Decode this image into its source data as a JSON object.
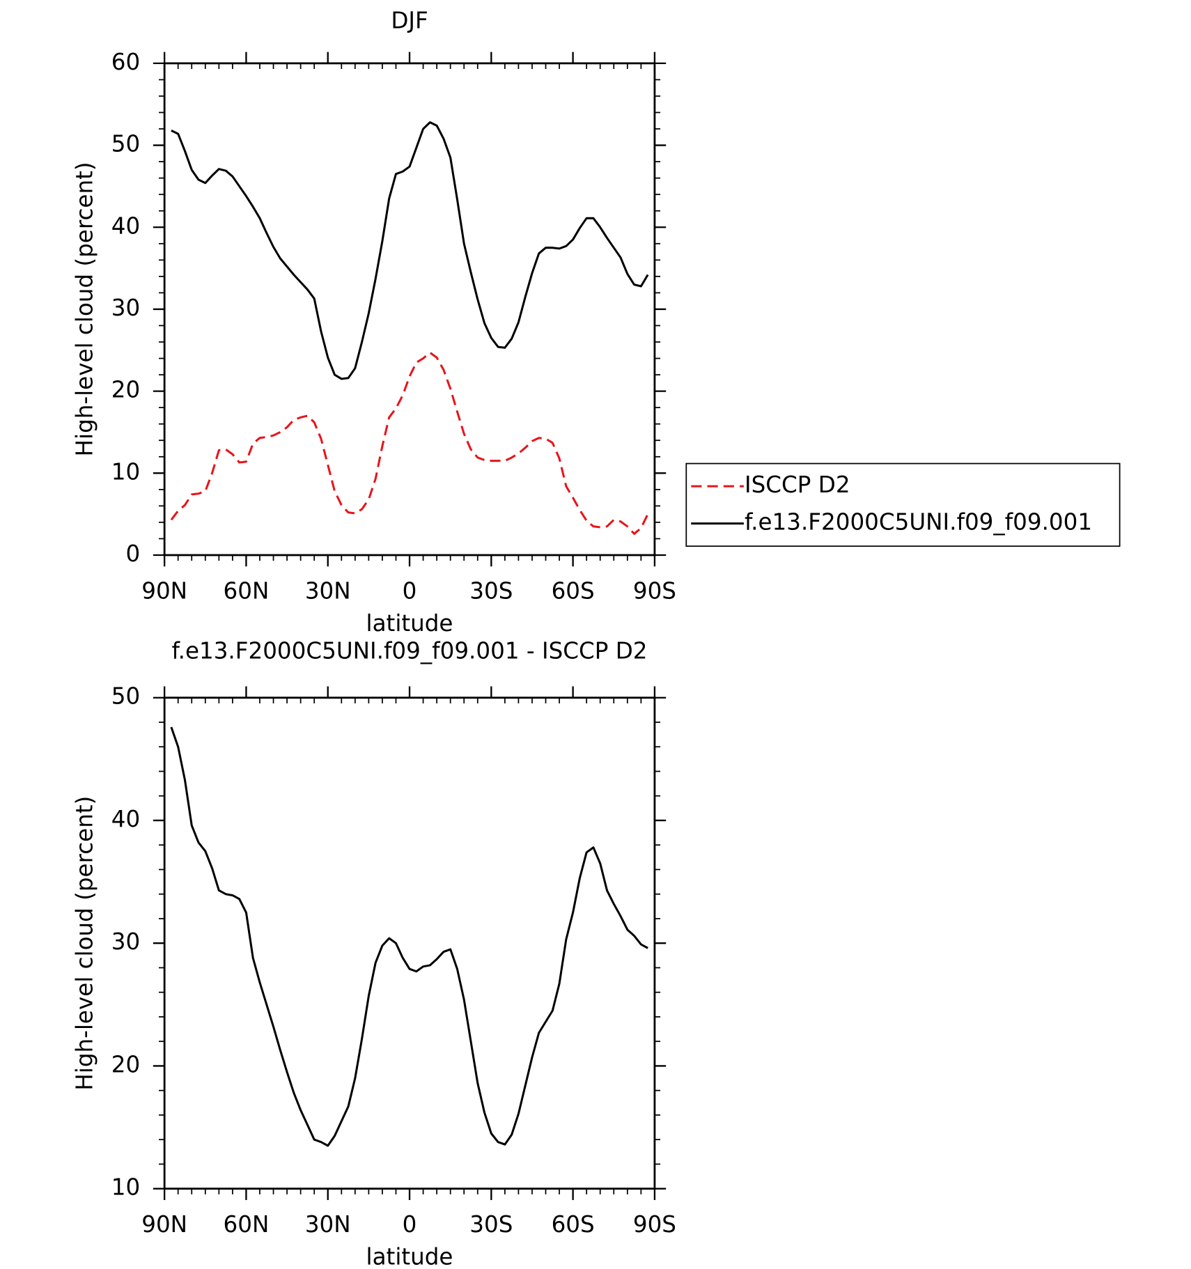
{
  "chart_data": [
    {
      "type": "line",
      "title": "DJF",
      "xlabel": "latitude",
      "ylabel": "High-level cloud (percent)",
      "x": [
        87.5,
        85,
        82.5,
        80,
        77.5,
        75,
        72.5,
        70,
        67.5,
        65,
        62.5,
        60,
        57.5,
        55,
        52.5,
        50,
        47.5,
        45,
        42.5,
        40,
        37.5,
        35,
        32.5,
        30,
        27.5,
        25,
        22.5,
        20,
        17.5,
        15,
        12.5,
        10,
        7.5,
        5,
        2.5,
        0,
        -2.5,
        -5,
        -7.5,
        -10,
        -12.5,
        -15,
        -17.5,
        -20,
        -22.5,
        -25,
        -27.5,
        -30,
        -32.5,
        -35,
        -37.5,
        -40,
        -42.5,
        -45,
        -47.5,
        -50,
        -52.5,
        -55,
        -57.5,
        -60,
        -62.5,
        -65,
        -67.5,
        -70,
        -72.5,
        -75,
        -77.5,
        -80,
        -82.5,
        -85,
        -87.5
      ],
      "xlim": [
        90,
        -90
      ],
      "xticks": [
        {
          "value": 90,
          "label": "90N"
        },
        {
          "value": 60,
          "label": "60N"
        },
        {
          "value": 30,
          "label": "30N"
        },
        0,
        {
          "value": -30,
          "label": "30S"
        },
        {
          "value": -60,
          "label": "60S"
        },
        {
          "value": -90,
          "label": "90S"
        }
      ],
      "ylim": [
        0,
        60
      ],
      "yticks": [
        0,
        10,
        20,
        30,
        40,
        50,
        60
      ],
      "legend": "right",
      "series": [
        {
          "name": "ISCCP D2",
          "color": "#e8141a",
          "dash": "dashed",
          "values": [
            4.3,
            5.4,
            6.1,
            7.4,
            7.5,
            7.8,
            10,
            12.8,
            12.9,
            12.3,
            11.3,
            11.4,
            13.6,
            14.3,
            14.4,
            14.6,
            15,
            15.6,
            16.5,
            16.8,
            17,
            16.2,
            14.2,
            11,
            7.8,
            6.1,
            5.2,
            5.1,
            5.6,
            6.8,
            9.3,
            13.3,
            16.8,
            17.9,
            19.5,
            21.8,
            23.5,
            24,
            24.7,
            24.1,
            22.6,
            20.3,
            17.5,
            14.8,
            12.9,
            11.9,
            11.6,
            11.5,
            11.5,
            11.5,
            11.9,
            12.4,
            13.1,
            13.9,
            14.3,
            14.2,
            13.7,
            11.8,
            8.4,
            7,
            5.5,
            4.2,
            3.5,
            3.4,
            3.5,
            4.3,
            4.1,
            3.5,
            2.6,
            3.3,
            5.0
          ]
        },
        {
          "name": "f.e13.F2000C5UNI.f09_f09.001",
          "color": "#000000",
          "dash": "solid",
          "values": [
            51.8,
            51.4,
            49.3,
            47,
            45.8,
            45.4,
            46.3,
            47.1,
            46.9,
            46.2,
            45,
            43.8,
            42.5,
            41.1,
            39.3,
            37.6,
            36.2,
            35.2,
            34.2,
            33.3,
            32.4,
            31.3,
            27.3,
            24.1,
            22,
            21.5,
            21.6,
            22.8,
            26,
            29.5,
            33.7,
            38.3,
            43.5,
            46.5,
            46.8,
            47.4,
            49.7,
            52,
            52.8,
            52.4,
            50.8,
            48.5,
            43.4,
            38,
            34.5,
            31.2,
            28.3,
            26.5,
            25.4,
            25.3,
            26.4,
            28.4,
            31.5,
            34.4,
            36.8,
            37.5,
            37.5,
            37.4,
            37.7,
            38.5,
            39.9,
            41.1,
            41.1,
            40,
            38.7,
            37.5,
            36.3,
            34.3,
            33,
            32.8,
            34.2
          ]
        }
      ]
    },
    {
      "type": "line",
      "title": "f.e13.F2000C5UNI.f09_f09.001 - ISCCP D2",
      "xlabel": "latitude",
      "ylabel": "High-level cloud (percent)",
      "x": [
        87.5,
        85,
        82.5,
        80,
        77.5,
        75,
        72.5,
        70,
        67.5,
        65,
        62.5,
        60,
        57.5,
        55,
        52.5,
        50,
        47.5,
        45,
        42.5,
        40,
        37.5,
        35,
        32.5,
        30,
        27.5,
        25,
        22.5,
        20,
        17.5,
        15,
        12.5,
        10,
        7.5,
        5,
        2.5,
        0,
        -2.5,
        -5,
        -7.5,
        -10,
        -12.5,
        -15,
        -17.5,
        -20,
        -22.5,
        -25,
        -27.5,
        -30,
        -32.5,
        -35,
        -37.5,
        -40,
        -42.5,
        -45,
        -47.5,
        -50,
        -52.5,
        -55,
        -57.5,
        -60,
        -62.5,
        -65,
        -67.5,
        -70,
        -72.5,
        -75,
        -77.5,
        -80,
        -82.5,
        -85,
        -87.5
      ],
      "xlim": [
        90,
        -90
      ],
      "xticks": [
        {
          "value": 90,
          "label": "90N"
        },
        {
          "value": 60,
          "label": "60N"
        },
        {
          "value": 30,
          "label": "30N"
        },
        0,
        {
          "value": -30,
          "label": "30S"
        },
        {
          "value": -60,
          "label": "60S"
        },
        {
          "value": -90,
          "label": "90S"
        }
      ],
      "ylim": [
        10,
        50
      ],
      "yticks": [
        10,
        20,
        30,
        40,
        50
      ],
      "series": [
        {
          "color": "#000000",
          "dash": "solid",
          "values": [
            47.6,
            46,
            43.3,
            39.6,
            38.2,
            37.5,
            36.1,
            34.3,
            34,
            33.9,
            33.6,
            32.5,
            28.8,
            26.8,
            25,
            23.2,
            21.3,
            19.5,
            17.8,
            16.4,
            15.2,
            14,
            13.8,
            13.5,
            14.3,
            15.5,
            16.7,
            19,
            22.2,
            25.7,
            28.4,
            29.8,
            30.4,
            30,
            28.8,
            27.9,
            27.7,
            28.1,
            28.2,
            28.7,
            29.3,
            29.5,
            27.9,
            25.4,
            22,
            18.6,
            16.2,
            14.5,
            13.8,
            13.6,
            14.4,
            16.1,
            18.4,
            20.7,
            22.7,
            23.6,
            24.5,
            26.7,
            30.3,
            32.5,
            35.3,
            37.4,
            37.8,
            36.5,
            34.3,
            33.2,
            32.2,
            31.1,
            30.6,
            29.9,
            29.6
          ]
        }
      ]
    }
  ]
}
